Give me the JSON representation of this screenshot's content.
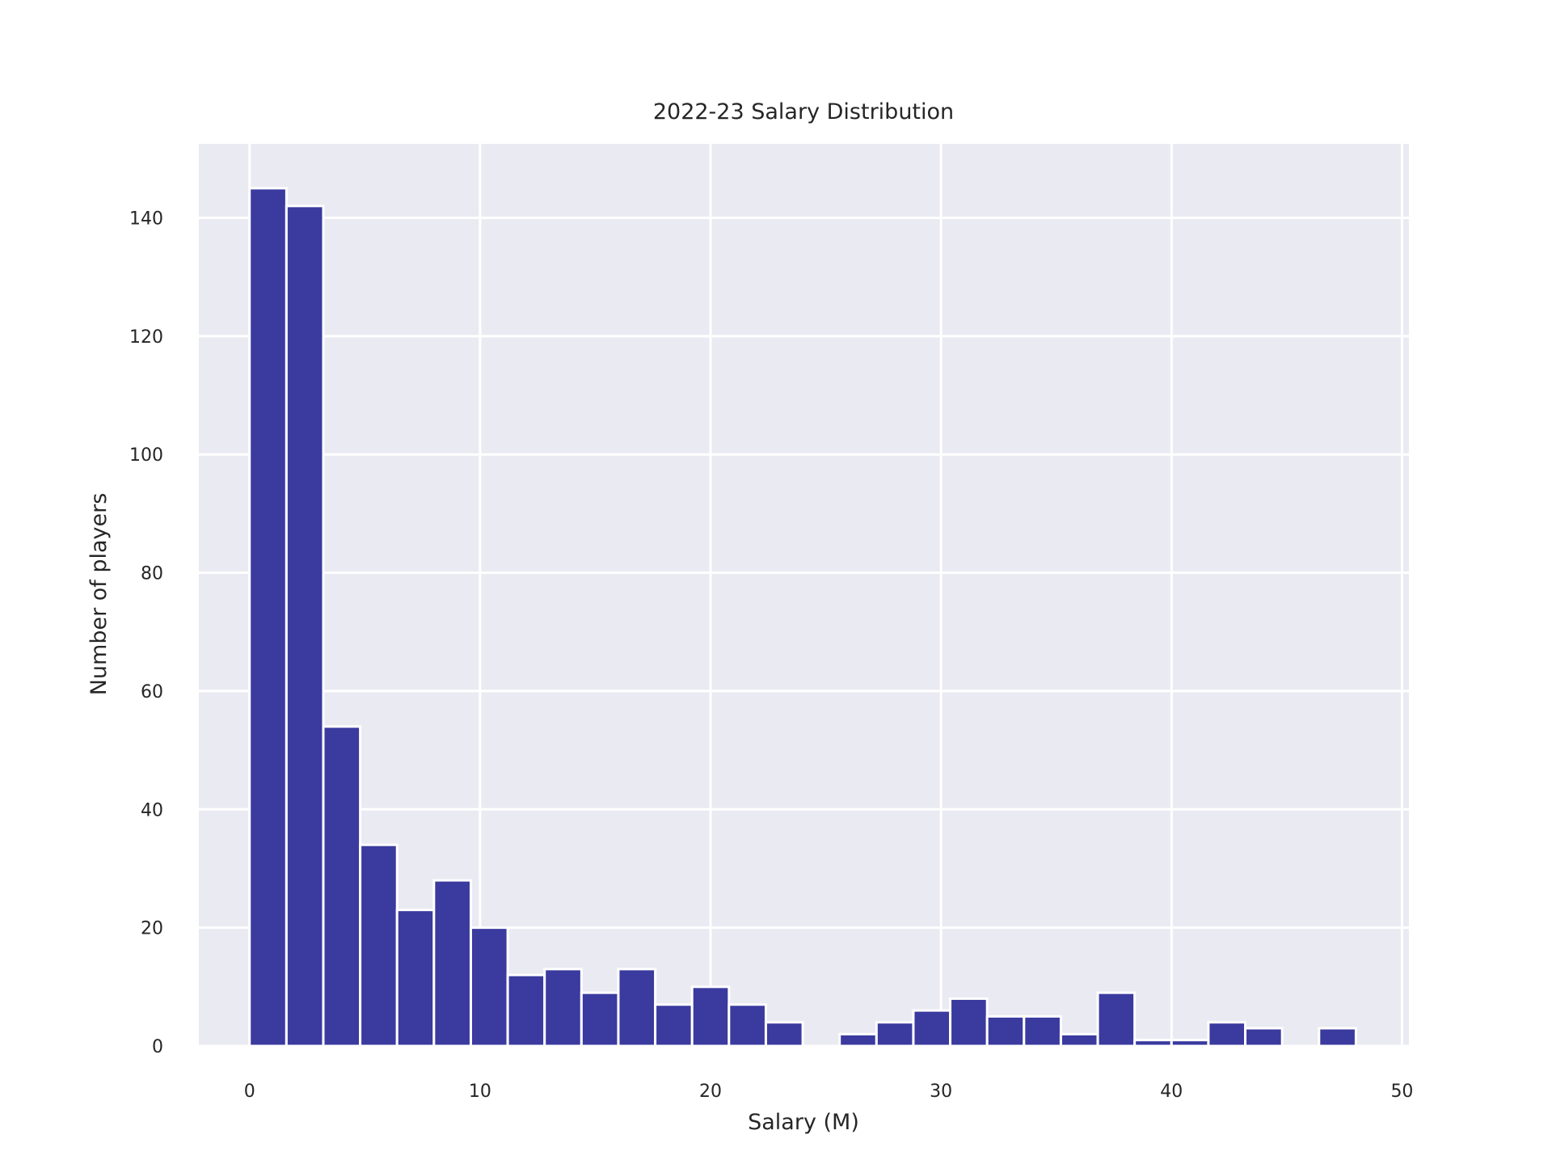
{
  "chart_data": {
    "type": "bar",
    "title": "2022-23 Salary Distribution",
    "xlabel": "Salary (M)",
    "ylabel": "Number of players",
    "xlim": [
      -2.2,
      50.3
    ],
    "ylim": [
      0,
      152.5
    ],
    "xticks": [
      0,
      10,
      20,
      30,
      40,
      50
    ],
    "yticks": [
      0,
      20,
      40,
      60,
      80,
      100,
      120,
      140
    ],
    "bin_width": 1.6,
    "bin_start": 0,
    "counts": [
      145,
      142,
      54,
      34,
      23,
      28,
      20,
      12,
      13,
      9,
      13,
      7,
      10,
      7,
      4,
      0,
      2,
      4,
      6,
      8,
      5,
      5,
      2,
      9,
      1,
      1,
      4,
      3,
      0,
      3
    ],
    "grid": true,
    "legend": "none",
    "colors": {
      "bar": "#3a3a9f",
      "plot_background": "#eaeaf2",
      "grid": "#ffffff",
      "text": "#262626"
    }
  }
}
